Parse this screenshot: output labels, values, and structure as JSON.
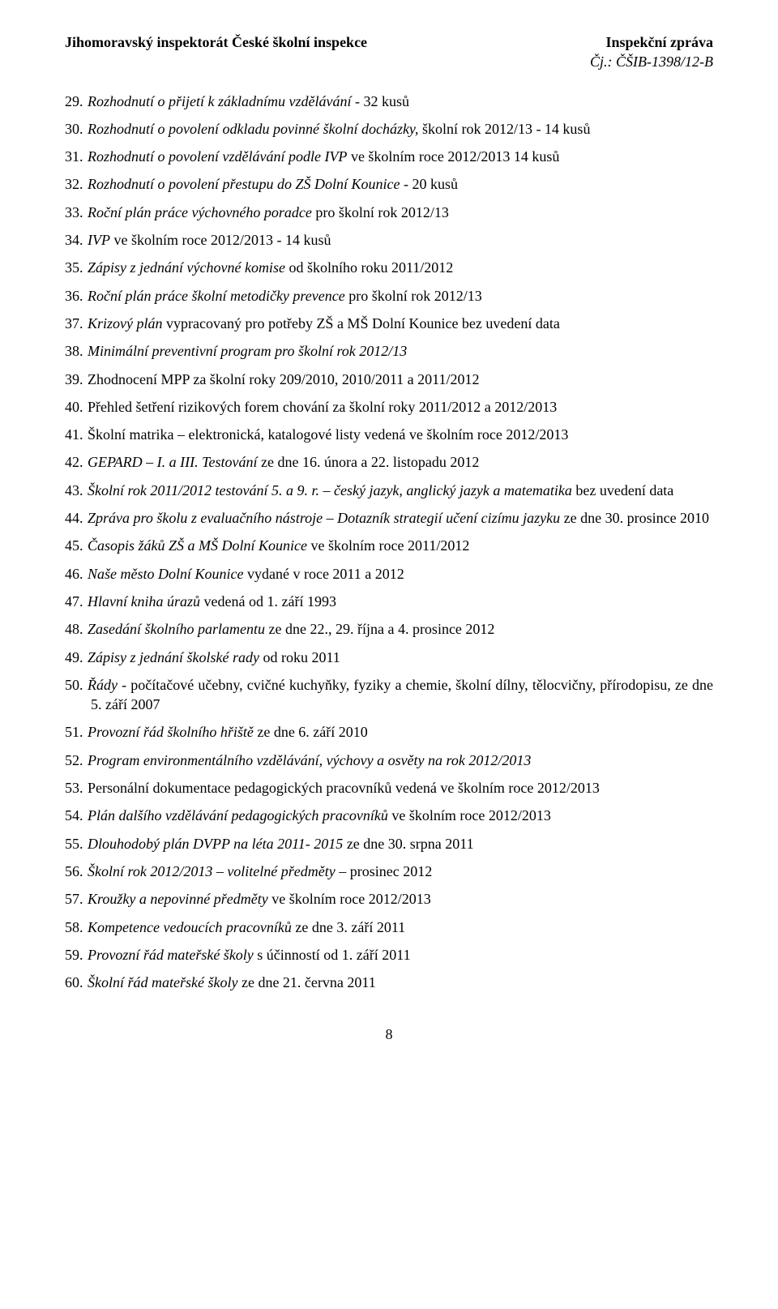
{
  "header": {
    "left": "Jihomoravský inspektorát České školní inspekce",
    "right_title": "Inspekční zpráva",
    "right_sub": "Čj.: ČŠIB-1398/12-B"
  },
  "items": [
    {
      "n": "29.",
      "segs": [
        {
          "t": "Rozhodnutí o přijetí k základnímu vzdělávání",
          "i": true
        },
        {
          "t": " - 32 kusů"
        }
      ]
    },
    {
      "n": "30.",
      "segs": [
        {
          "t": "Rozhodnutí o povolení odkladu povinné školní docházky,",
          "i": true
        },
        {
          "t": " školní rok 2012/13 - 14 kusů"
        }
      ]
    },
    {
      "n": "31.",
      "segs": [
        {
          "t": "Rozhodnutí o povolení vzdělávání podle IVP",
          "i": true
        },
        {
          "t": " ve školním roce 2012/2013 14 kusů"
        }
      ]
    },
    {
      "n": "32.",
      "segs": [
        {
          "t": "Rozhodnutí o povolení přestupu do ZŠ Dolní Kounice",
          "i": true
        },
        {
          "t": " - 20 kusů"
        }
      ]
    },
    {
      "n": "33.",
      "segs": [
        {
          "t": "Roční plán práce výchovného poradce",
          "i": true
        },
        {
          "t": " pro školní rok 2012/13"
        }
      ]
    },
    {
      "n": "34.",
      "segs": [
        {
          "t": "IVP",
          "i": true
        },
        {
          "t": " ve školním roce 2012/2013 - 14 kusů"
        }
      ]
    },
    {
      "n": "35.",
      "segs": [
        {
          "t": "Zápisy z jednání výchovné komise",
          "i": true
        },
        {
          "t": " od školního roku 2011/2012"
        }
      ]
    },
    {
      "n": "36.",
      "segs": [
        {
          "t": "Roční plán práce školní metodičky prevence",
          "i": true
        },
        {
          "t": " pro školní rok 2012/13"
        }
      ]
    },
    {
      "n": "37.",
      "segs": [
        {
          "t": "Krizový plán",
          "i": true
        },
        {
          "t": " vypracovaný pro potřeby ZŠ a MŠ Dolní Kounice bez uvedení data"
        }
      ]
    },
    {
      "n": "38.",
      "segs": [
        {
          "t": "Minimální preventivní program pro školní rok 2012/13",
          "i": true
        }
      ]
    },
    {
      "n": "39.",
      "segs": [
        {
          "t": "Zhodnocení MPP za školní roky 209/2010, 2010/2011 a 2011/2012"
        }
      ]
    },
    {
      "n": "40.",
      "segs": [
        {
          "t": "Přehled šetření rizikových forem chování za školní roky 2011/2012 a 2012/2013"
        }
      ]
    },
    {
      "n": "41.",
      "segs": [
        {
          "t": "Školní matrika – elektronická, katalogové listy vedená ve školním roce 2012/2013"
        }
      ]
    },
    {
      "n": "42.",
      "segs": [
        {
          "t": "GEPARD – I. a III. Testování",
          "i": true
        },
        {
          "t": " ze dne 16. února a 22. listopadu 2012"
        }
      ]
    },
    {
      "n": "43.",
      "segs": [
        {
          "t": "Školní rok 2011/2012 testování 5. a 9. r. – český jazyk, anglický jazyk a matematika",
          "i": true
        },
        {
          "t": " bez uvedení data"
        }
      ]
    },
    {
      "n": "44.",
      "segs": [
        {
          "t": "Zpráva pro školu z evaluačního nástroje – Dotazník strategií učení cizímu jazyku",
          "i": true
        },
        {
          "t": " ze dne 30. prosince 2010"
        }
      ]
    },
    {
      "n": "45.",
      "segs": [
        {
          "t": "Časopis žáků ZŠ a MŠ Dolní Kounice",
          "i": true
        },
        {
          "t": " ve školním roce 2011/2012"
        }
      ]
    },
    {
      "n": "46.",
      "segs": [
        {
          "t": "Naše město Dolní Kounice",
          "i": true
        },
        {
          "t": " vydané v roce 2011 a 2012"
        }
      ]
    },
    {
      "n": "47.",
      "segs": [
        {
          "t": "Hlavní kniha úrazů",
          "i": true
        },
        {
          "t": " vedená od 1. září 1993"
        }
      ]
    },
    {
      "n": "48.",
      "segs": [
        {
          "t": "Zasedání školního parlamentu",
          "i": true
        },
        {
          "t": " ze dne 22., 29. října a 4. prosince 2012"
        }
      ]
    },
    {
      "n": "49.",
      "segs": [
        {
          "t": "Zápisy z jednání školské rady",
          "i": true
        },
        {
          "t": " od roku 2011"
        }
      ]
    },
    {
      "n": "50.",
      "segs": [
        {
          "t": "Řády",
          "i": true
        },
        {
          "t": " - počítačové učebny, cvičné kuchyňky, fyziky a chemie, školní dílny, tělocvičny, přírodopisu, ze dne 5. září 2007"
        }
      ]
    },
    {
      "n": "51.",
      "segs": [
        {
          "t": "Provozní řád školního hřiště",
          "i": true
        },
        {
          "t": " ze dne 6. září 2010"
        }
      ]
    },
    {
      "n": "52.",
      "segs": [
        {
          "t": "Program environmentálního vzdělávání, výchovy a osvěty na rok 2012/2013",
          "i": true
        }
      ]
    },
    {
      "n": "53.",
      "segs": [
        {
          "t": "Personální dokumentace pedagogických pracovníků vedená ve školním roce 2012/2013"
        }
      ]
    },
    {
      "n": "54.",
      "segs": [
        {
          "t": "Plán dalšího vzdělávání pedagogických pracovníků",
          "i": true
        },
        {
          "t": " ve školním roce 2012/2013"
        }
      ]
    },
    {
      "n": "55.",
      "segs": [
        {
          "t": "Dlouhodobý plán DVPP na léta 2011- 2015",
          "i": true
        },
        {
          "t": " ze dne 30. srpna 2011"
        }
      ]
    },
    {
      "n": "56.",
      "segs": [
        {
          "t": "Školní rok 2012/2013 – volitelné předměty –",
          "i": true
        },
        {
          "t": " prosinec 2012"
        }
      ]
    },
    {
      "n": "57.",
      "segs": [
        {
          "t": "Kroužky a nepovinné předměty",
          "i": true
        },
        {
          "t": " ve školním roce 2012/2013"
        }
      ]
    },
    {
      "n": "58.",
      "segs": [
        {
          "t": "Kompetence vedoucích pracovníků",
          "i": true
        },
        {
          "t": " ze dne 3. září 2011"
        }
      ]
    },
    {
      "n": "59.",
      "segs": [
        {
          "t": "Provozní řád mateřské školy",
          "i": true
        },
        {
          "t": " s účinností od 1. září 2011"
        }
      ]
    },
    {
      "n": "60.",
      "segs": [
        {
          "t": "Školní řád mateřské školy",
          "i": true
        },
        {
          "t": " ze dne 21. června 2011"
        }
      ]
    }
  ],
  "page_number": "8"
}
